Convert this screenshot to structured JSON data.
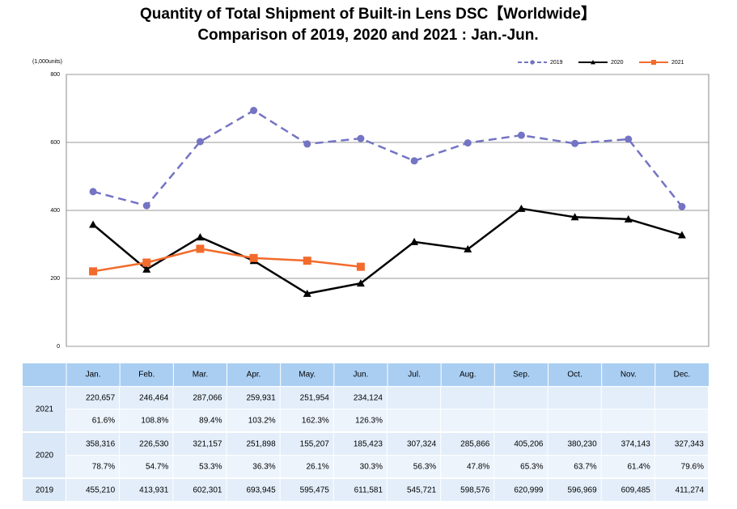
{
  "chart_data": {
    "type": "line",
    "title": "Quantity of Total Shipment of Built-in Lens DSC【Worldwide】",
    "subtitle": "Comparison of 2019, 2020 and 2021 : Jan.-Jun.",
    "y_label": "(1,000units)",
    "categories": [
      "Jan.",
      "Feb.",
      "Mar.",
      "Apr.",
      "May.",
      "Jun.",
      "Jul.",
      "Aug.",
      "Sep.",
      "Oct.",
      "Nov.",
      "Dec."
    ],
    "ylim": [
      0,
      800
    ],
    "yticks": [
      0,
      200,
      400,
      600,
      800
    ],
    "grid": true,
    "legend": "top-right",
    "series": [
      {
        "name": "2019",
        "color": "#7474c4",
        "dash": true,
        "marker": "circle",
        "values": [
          455.21,
          413.931,
          602.301,
          693.945,
          595.475,
          611.581,
          545.721,
          598.576,
          620.999,
          596.969,
          609.485,
          411.274
        ],
        "value_labels": [
          "455,210",
          "413,931",
          "602,301",
          "693,945",
          "595,475",
          "611,581",
          "545,721",
          "598,576",
          "620,999",
          "596,969",
          "609,485",
          "411,274"
        ]
      },
      {
        "name": "2020",
        "color": "#000000",
        "dash": false,
        "marker": "triangle",
        "values": [
          358.316,
          226.53,
          321.157,
          251.898,
          155.207,
          185.423,
          307.324,
          285.866,
          405.206,
          380.23,
          374.143,
          327.343
        ],
        "value_labels": [
          "358,316",
          "226,530",
          "321,157",
          "251,898",
          "155,207",
          "185,423",
          "307,324",
          "285,866",
          "405,206",
          "380,230",
          "374,143",
          "327,343"
        ],
        "ratio_labels": [
          "78.7%",
          "54.7%",
          "53.3%",
          "36.3%",
          "26.1%",
          "30.3%",
          "56.3%",
          "47.8%",
          "65.3%",
          "63.7%",
          "61.4%",
          "79.6%"
        ]
      },
      {
        "name": "2021",
        "color": "#f26b2c",
        "dash": false,
        "marker": "square",
        "values": [
          220.657,
          246.464,
          287.066,
          259.931,
          251.954,
          234.124,
          null,
          null,
          null,
          null,
          null,
          null
        ],
        "value_labels": [
          "220,657",
          "246,464",
          "287,066",
          "259,931",
          "251,954",
          "234,124",
          null,
          null,
          null,
          null,
          null,
          null
        ],
        "ratio_labels": [
          "61.6%",
          "108.8%",
          "89.4%",
          "103.2%",
          "162.3%",
          "126.3%",
          null,
          null,
          null,
          null,
          null,
          null
        ]
      }
    ]
  }
}
